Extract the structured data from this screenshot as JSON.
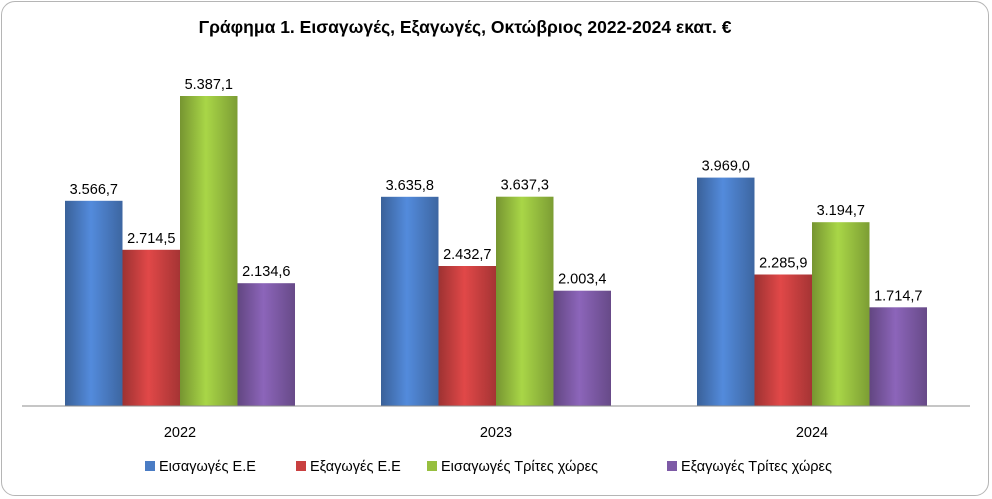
{
  "chart_data": {
    "type": "bar",
    "title": "Γράφημα 1. Εισαγωγές, Εξαγωγές, Οκτώβριος 2022-2024 εκατ. €",
    "categories": [
      "2022",
      "2023",
      "2024"
    ],
    "series": [
      {
        "name": "Εισαγωγές Ε.Ε",
        "color": "#4a7cc4",
        "values": [
          3566.7,
          3635.8,
          3969.0
        ],
        "labels": [
          "3.566,7",
          "3.635,8",
          "3.969,0"
        ]
      },
      {
        "name": "Εξαγωγές  Ε.Ε",
        "color": "#c94040",
        "values": [
          2714.5,
          2432.7,
          2285.9
        ],
        "labels": [
          "2.714,5",
          "2.432,7",
          "2.285,9"
        ]
      },
      {
        "name": "Εισαγωγές Τρίτες χώρες",
        "color": "#97bf3f",
        "values": [
          5387.1,
          3637.3,
          3194.7
        ],
        "labels": [
          "5.387,1",
          "3.637,3",
          "3.194,7"
        ]
      },
      {
        "name": "Εξαγωγές Τρίτες χώρες",
        "color": "#7d5aa6",
        "values": [
          2134.6,
          2003.4,
          1714.7
        ],
        "labels": [
          "2.134,6",
          "2.003,4",
          "1.714,7"
        ]
      }
    ],
    "ylim": [
      0,
      5500
    ],
    "grid": false,
    "legend_position": "bottom"
  }
}
